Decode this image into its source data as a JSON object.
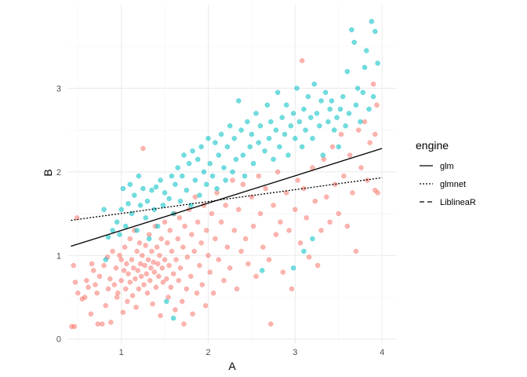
{
  "chart_data": {
    "type": "scatter",
    "xlabel": "A",
    "ylabel": "B",
    "xlim": [
      0.38,
      4.17
    ],
    "ylim": [
      -0.05,
      4.0
    ],
    "x_ticks": [
      "1",
      "2",
      "3",
      "4"
    ],
    "y_ticks": [
      "0",
      "1",
      "2",
      "3"
    ],
    "grid": true,
    "legend": {
      "title": "engine",
      "placement": "right",
      "entries": [
        {
          "label": "glm",
          "linetype": "solid"
        },
        {
          "label": "glmnet",
          "linetype": "dotted"
        },
        {
          "label": "LiblineaR",
          "linetype": "dashed"
        }
      ]
    },
    "point_groups": [
      {
        "color": "#F8766D",
        "points": [
          [
            0.43,
            0.15
          ],
          [
            0.46,
            0.15
          ],
          [
            0.45,
            0.88
          ],
          [
            0.47,
            0.68
          ],
          [
            0.49,
            1.45
          ],
          [
            0.5,
            0.55
          ],
          [
            0.55,
            0.48
          ],
          [
            0.58,
            0.5
          ],
          [
            0.6,
            0.7
          ],
          [
            0.62,
            0.62
          ],
          [
            0.65,
            0.3
          ],
          [
            0.66,
            0.9
          ],
          [
            0.68,
            0.82
          ],
          [
            0.7,
            0.65
          ],
          [
            0.72,
            0.55
          ],
          [
            0.73,
            0.18
          ],
          [
            0.75,
            0.75
          ],
          [
            0.78,
            0.18
          ],
          [
            0.8,
            0.88
          ],
          [
            0.82,
            0.4
          ],
          [
            0.84,
            0.98
          ],
          [
            0.85,
            0.6
          ],
          [
            0.87,
            0.72
          ],
          [
            0.88,
            0.2
          ],
          [
            0.9,
            1.05
          ],
          [
            0.92,
            0.65
          ],
          [
            0.94,
            0.85
          ],
          [
            0.95,
            0.5
          ],
          [
            0.96,
            0.55
          ],
          [
            0.98,
            1.0
          ],
          [
            1.0,
            0.95
          ],
          [
            1.0,
            0.7
          ],
          [
            1.02,
            0.32
          ],
          [
            1.03,
            0.82
          ],
          [
            1.04,
            1.1
          ],
          [
            1.05,
            0.6
          ],
          [
            1.06,
            0.9
          ],
          [
            1.07,
            0.45
          ],
          [
            1.08,
            0.78
          ],
          [
            1.1,
            1.2
          ],
          [
            1.1,
            0.68
          ],
          [
            1.12,
            0.95
          ],
          [
            1.13,
            0.52
          ],
          [
            1.14,
            0.85
          ],
          [
            1.15,
            1.3
          ],
          [
            1.16,
            0.72
          ],
          [
            1.17,
            0.38
          ],
          [
            1.18,
            1.05
          ],
          [
            1.19,
            0.82
          ],
          [
            1.2,
            0.6
          ],
          [
            1.21,
            1.15
          ],
          [
            1.22,
            0.9
          ],
          [
            1.23,
            0.75
          ],
          [
            1.24,
            1.0
          ],
          [
            1.25,
            2.28
          ],
          [
            1.26,
            0.65
          ],
          [
            1.27,
            0.88
          ],
          [
            1.28,
            1.12
          ],
          [
            1.29,
            0.78
          ],
          [
            1.3,
            0.55
          ],
          [
            1.31,
            0.95
          ],
          [
            1.32,
            1.25
          ],
          [
            1.33,
            0.7
          ],
          [
            1.34,
            0.85
          ],
          [
            1.35,
            1.05
          ],
          [
            1.36,
            0.42
          ],
          [
            1.37,
            0.92
          ],
          [
            1.38,
            0.8
          ],
          [
            1.39,
            1.35
          ],
          [
            1.4,
            0.62
          ],
          [
            1.41,
            1.1
          ],
          [
            1.42,
            0.9
          ],
          [
            1.43,
            0.75
          ],
          [
            1.44,
            1.0
          ],
          [
            1.45,
            0.28
          ],
          [
            1.46,
            1.2
          ],
          [
            1.47,
            0.85
          ],
          [
            1.48,
            0.68
          ],
          [
            1.5,
            1.4
          ],
          [
            1.5,
            0.95
          ],
          [
            1.52,
            0.72
          ],
          [
            1.53,
            1.15
          ],
          [
            1.54,
            0.5
          ],
          [
            1.55,
            0.88
          ],
          [
            1.56,
            1.3
          ],
          [
            1.57,
            0.62
          ],
          [
            1.58,
            1.05
          ],
          [
            1.6,
            0.78
          ],
          [
            1.61,
            1.5
          ],
          [
            1.62,
            0.35
          ],
          [
            1.63,
            0.95
          ],
          [
            1.65,
            1.2
          ],
          [
            1.66,
            0.7
          ],
          [
            1.67,
            1.45
          ],
          [
            1.68,
            0.85
          ],
          [
            1.7,
            0.45
          ],
          [
            1.71,
            1.1
          ],
          [
            1.72,
            0.18
          ],
          [
            1.73,
            1.35
          ],
          [
            1.75,
            0.6
          ],
          [
            1.76,
            0.98
          ],
          [
            1.78,
            1.55
          ],
          [
            1.8,
            0.75
          ],
          [
            1.81,
            1.25
          ],
          [
            1.82,
            0.3
          ],
          [
            1.84,
            1.05
          ],
          [
            1.85,
            1.7
          ],
          [
            1.87,
            0.55
          ],
          [
            1.88,
            1.4
          ],
          [
            1.9,
            0.88
          ],
          [
            1.92,
            1.15
          ],
          [
            1.93,
            0.65
          ],
          [
            1.95,
            1.6
          ],
          [
            1.97,
            0.4
          ],
          [
            1.98,
            1.3
          ],
          [
            2.0,
            1.0
          ],
          [
            2.02,
            0.8
          ],
          [
            2.04,
            1.5
          ],
          [
            2.06,
            0.55
          ],
          [
            2.08,
            1.2
          ],
          [
            2.1,
            1.75
          ],
          [
            2.12,
            0.95
          ],
          [
            2.15,
            1.4
          ],
          [
            2.18,
            0.7
          ],
          [
            2.2,
            1.6
          ],
          [
            2.22,
            1.1
          ],
          [
            2.25,
            0.85
          ],
          [
            2.28,
            1.9
          ],
          [
            2.3,
            1.3
          ],
          [
            2.33,
            0.6
          ],
          [
            2.35,
            1.55
          ],
          [
            2.38,
            1.05
          ],
          [
            2.4,
            1.85
          ],
          [
            2.43,
            1.2
          ],
          [
            2.46,
            0.9
          ],
          [
            2.5,
            1.7
          ],
          [
            2.52,
            1.35
          ],
          [
            2.55,
            0.75
          ],
          [
            2.58,
            1.95
          ],
          [
            2.6,
            1.5
          ],
          [
            2.63,
            1.1
          ],
          [
            2.66,
            1.8
          ],
          [
            2.7,
            0.95
          ],
          [
            2.72,
            0.18
          ],
          [
            2.75,
            1.6
          ],
          [
            2.78,
            1.25
          ],
          [
            2.8,
            2.0
          ],
          [
            2.83,
            1.4
          ],
          [
            2.86,
            0.8
          ],
          [
            2.9,
            1.75
          ],
          [
            2.93,
            1.3
          ],
          [
            2.96,
            0.6
          ],
          [
            3.0,
            1.55
          ],
          [
            3.03,
            1.9
          ],
          [
            3.06,
            1.15
          ],
          [
            3.08,
            3.33
          ],
          [
            3.1,
            1.8
          ],
          [
            3.13,
            1.45
          ],
          [
            3.16,
            0.98
          ],
          [
            3.2,
            2.05
          ],
          [
            3.23,
            1.65
          ],
          [
            3.26,
            0.88
          ],
          [
            3.3,
            1.3
          ],
          [
            3.33,
            2.15
          ],
          [
            3.36,
            1.7
          ],
          [
            3.4,
            1.4
          ],
          [
            3.43,
            2.3
          ],
          [
            3.46,
            1.85
          ],
          [
            3.5,
            1.5
          ],
          [
            3.53,
            2.45
          ],
          [
            3.56,
            1.95
          ],
          [
            3.6,
            1.35
          ],
          [
            3.63,
            2.2
          ],
          [
            3.66,
            1.75
          ],
          [
            3.7,
            1.05
          ],
          [
            3.73,
            2.5
          ],
          [
            3.76,
            2.05
          ],
          [
            3.8,
            2.6
          ],
          [
            3.83,
            1.9
          ],
          [
            3.86,
            2.35
          ],
          [
            3.9,
            3.05
          ],
          [
            3.92,
            2.45
          ],
          [
            3.95,
            1.75
          ],
          [
            3.92,
            1.78
          ],
          [
            3.94,
            2.8
          ]
        ]
      },
      {
        "color": "#00BFC4",
        "points": [
          [
            0.8,
            1.55
          ],
          [
            0.82,
            0.95
          ],
          [
            0.85,
            1.22
          ],
          [
            0.9,
            1.3
          ],
          [
            0.95,
            1.4
          ],
          [
            0.98,
            1.25
          ],
          [
            1.0,
            1.55
          ],
          [
            1.02,
            1.8
          ],
          [
            1.05,
            1.35
          ],
          [
            1.08,
            1.62
          ],
          [
            1.1,
            1.85
          ],
          [
            1.12,
            1.5
          ],
          [
            1.15,
            1.72
          ],
          [
            1.18,
            1.3
          ],
          [
            1.2,
            1.95
          ],
          [
            1.22,
            1.6
          ],
          [
            1.25,
            1.8
          ],
          [
            1.28,
            1.45
          ],
          [
            1.3,
            1.65
          ],
          [
            1.32,
            1.2
          ],
          [
            1.35,
            1.78
          ],
          [
            1.38,
            1.55
          ],
          [
            1.4,
            1.82
          ],
          [
            1.42,
            1.35
          ],
          [
            1.45,
            1.9
          ],
          [
            1.48,
            1.6
          ],
          [
            1.5,
            1.75
          ],
          [
            1.52,
            0.45
          ],
          [
            1.55,
            1.68
          ],
          [
            1.58,
            1.95
          ],
          [
            1.6,
            0.25
          ],
          [
            1.6,
            1.5
          ],
          [
            1.62,
            1.85
          ],
          [
            1.65,
            2.05
          ],
          [
            1.68,
            1.65
          ],
          [
            1.7,
            1.95
          ],
          [
            1.72,
            2.2
          ],
          [
            1.75,
            1.78
          ],
          [
            1.78,
            2.1
          ],
          [
            1.8,
            1.6
          ],
          [
            1.82,
            2.25
          ],
          [
            1.85,
            1.9
          ],
          [
            1.88,
            2.15
          ],
          [
            1.9,
            1.72
          ],
          [
            1.92,
            2.3
          ],
          [
            1.95,
            2.0
          ],
          [
            1.98,
            1.85
          ],
          [
            2.0,
            2.4
          ],
          [
            2.02,
            2.1
          ],
          [
            2.05,
            1.95
          ],
          [
            2.08,
            2.35
          ],
          [
            2.1,
            1.8
          ],
          [
            2.12,
            2.2
          ],
          [
            2.15,
            2.45
          ],
          [
            2.18,
            2.05
          ],
          [
            2.2,
            1.9
          ],
          [
            2.22,
            2.3
          ],
          [
            2.25,
            2.55
          ],
          [
            2.28,
            2.0
          ],
          [
            2.3,
            2.4
          ],
          [
            2.32,
            2.15
          ],
          [
            2.35,
            2.85
          ],
          [
            2.38,
            2.5
          ],
          [
            2.4,
            2.2
          ],
          [
            2.42,
            1.95
          ],
          [
            2.45,
            2.6
          ],
          [
            2.48,
            2.3
          ],
          [
            2.5,
            2.45
          ],
          [
            2.52,
            2.1
          ],
          [
            2.55,
            2.7
          ],
          [
            2.58,
            2.35
          ],
          [
            2.6,
            2.55
          ],
          [
            2.62,
            0.82
          ],
          [
            2.65,
            2.25
          ],
          [
            2.68,
            2.8
          ],
          [
            2.7,
            2.4
          ],
          [
            2.72,
            2.6
          ],
          [
            2.75,
            2.15
          ],
          [
            2.78,
            2.5
          ],
          [
            2.8,
            2.95
          ],
          [
            2.82,
            2.3
          ],
          [
            2.85,
            2.65
          ],
          [
            2.88,
            2.45
          ],
          [
            2.9,
            2.8
          ],
          [
            2.92,
            2.2
          ],
          [
            2.95,
            2.55
          ],
          [
            2.98,
            2.7
          ],
          [
            3.0,
            2.4
          ],
          [
            3.02,
            3.0
          ],
          [
            3.05,
            2.6
          ],
          [
            3.08,
            2.3
          ],
          [
            3.1,
            2.75
          ],
          [
            3.12,
            2.5
          ],
          [
            3.15,
            2.9
          ],
          [
            3.18,
            2.65
          ],
          [
            3.2,
            2.4
          ],
          [
            3.22,
            3.05
          ],
          [
            3.25,
            2.7
          ],
          [
            3.28,
            2.55
          ],
          [
            3.3,
            2.85
          ],
          [
            3.32,
            2.2
          ],
          [
            3.35,
            2.95
          ],
          [
            3.38,
            2.6
          ],
          [
            3.4,
            2.75
          ],
          [
            3.42,
            2.85
          ],
          [
            3.45,
            2.5
          ],
          [
            3.48,
            2.65
          ],
          [
            3.5,
            2.3
          ],
          [
            3.52,
            2.75
          ],
          [
            3.55,
            2.9
          ],
          [
            3.58,
            2.55
          ],
          [
            3.6,
            3.2
          ],
          [
            3.62,
            2.7
          ],
          [
            3.65,
            3.7
          ],
          [
            3.68,
            3.55
          ],
          [
            3.7,
            2.8
          ],
          [
            3.72,
            3.0
          ],
          [
            3.75,
            2.6
          ],
          [
            3.78,
            2.95
          ],
          [
            3.8,
            3.25
          ],
          [
            3.82,
            3.45
          ],
          [
            3.85,
            2.75
          ],
          [
            3.88,
            3.8
          ],
          [
            3.9,
            2.9
          ],
          [
            3.92,
            3.68
          ],
          [
            3.95,
            3.3
          ],
          [
            3.2,
            1.2
          ],
          [
            2.98,
            0.85
          ],
          [
            3.1,
            1.05
          ]
        ]
      }
    ],
    "lines": [
      {
        "engine": "glm",
        "x": [
          0.42,
          4.0
        ],
        "y": [
          1.11,
          2.28
        ]
      },
      {
        "engine": "glmnet",
        "x": [
          0.42,
          4.0
        ],
        "y": [
          1.42,
          1.93
        ]
      }
    ]
  }
}
